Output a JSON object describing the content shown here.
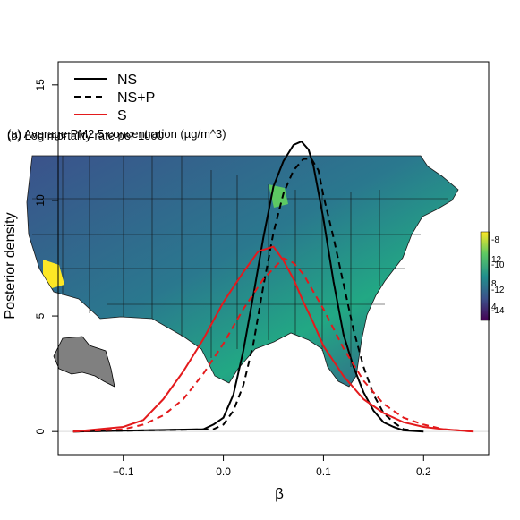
{
  "chart_data": {
    "type": "line",
    "xlabel": "β",
    "ylabel": "Posterior density",
    "xlim": [
      -0.165,
      0.265
    ],
    "ylim": [
      -1.0,
      16.0
    ],
    "x_ticks": [
      -0.1,
      0.0,
      0.1,
      0.2
    ],
    "x_tick_labels": [
      "−0.1",
      "0.0",
      "0.1",
      "0.2"
    ],
    "y_ticks": [
      0,
      5,
      10,
      15
    ],
    "y_tick_labels": [
      "0",
      "5",
      "10",
      "15"
    ],
    "legend_position": "top-left",
    "series": [
      {
        "name": "NS",
        "color": "#000000",
        "dash": "solid",
        "points": [
          [
            -0.15,
            0.0
          ],
          [
            -0.02,
            0.1
          ],
          [
            -0.01,
            0.3
          ],
          [
            0.0,
            0.6
          ],
          [
            0.01,
            1.6
          ],
          [
            0.02,
            3.5
          ],
          [
            0.03,
            5.9
          ],
          [
            0.04,
            8.4
          ],
          [
            0.05,
            10.6
          ],
          [
            0.06,
            11.7
          ],
          [
            0.07,
            12.4
          ],
          [
            0.078,
            12.55
          ],
          [
            0.085,
            12.2
          ],
          [
            0.09,
            11.5
          ],
          [
            0.1,
            9.2
          ],
          [
            0.11,
            6.5
          ],
          [
            0.12,
            4.2
          ],
          [
            0.13,
            2.8
          ],
          [
            0.14,
            1.7
          ],
          [
            0.15,
            0.9
          ],
          [
            0.16,
            0.4
          ],
          [
            0.17,
            0.2
          ],
          [
            0.18,
            0.05
          ],
          [
            0.2,
            0.0
          ]
        ]
      },
      {
        "name": "NS+P",
        "color": "#000000",
        "dash": "dashed",
        "points": [
          [
            -0.15,
            0.0
          ],
          [
            -0.01,
            0.1
          ],
          [
            0.0,
            0.3
          ],
          [
            0.01,
            0.9
          ],
          [
            0.02,
            2.0
          ],
          [
            0.03,
            3.8
          ],
          [
            0.04,
            6.3
          ],
          [
            0.05,
            8.6
          ],
          [
            0.06,
            10.3
          ],
          [
            0.07,
            11.3
          ],
          [
            0.08,
            11.8
          ],
          [
            0.088,
            11.8
          ],
          [
            0.095,
            11.3
          ],
          [
            0.1,
            10.2
          ],
          [
            0.11,
            8.4
          ],
          [
            0.12,
            6.4
          ],
          [
            0.13,
            4.4
          ],
          [
            0.14,
            2.8
          ],
          [
            0.15,
            1.6
          ],
          [
            0.16,
            0.8
          ],
          [
            0.17,
            0.4
          ],
          [
            0.18,
            0.1
          ],
          [
            0.2,
            0.0
          ]
        ]
      },
      {
        "name": "S",
        "color": "#e31a1c",
        "dash": "solid",
        "points": [
          [
            -0.15,
            0.0
          ],
          [
            -0.1,
            0.2
          ],
          [
            -0.08,
            0.5
          ],
          [
            -0.06,
            1.4
          ],
          [
            -0.04,
            2.6
          ],
          [
            -0.02,
            4.0
          ],
          [
            0.0,
            5.6
          ],
          [
            0.02,
            6.9
          ],
          [
            0.035,
            7.8
          ],
          [
            0.05,
            8.0
          ],
          [
            0.06,
            7.4
          ],
          [
            0.07,
            6.6
          ],
          [
            0.08,
            5.6
          ],
          [
            0.09,
            4.7
          ],
          [
            0.1,
            3.7
          ],
          [
            0.12,
            2.4
          ],
          [
            0.14,
            1.4
          ],
          [
            0.16,
            0.8
          ],
          [
            0.18,
            0.4
          ],
          [
            0.2,
            0.2
          ],
          [
            0.22,
            0.1
          ],
          [
            0.25,
            0.0
          ]
        ]
      },
      {
        "name": "",
        "color": "#e31a1c",
        "dash": "dashed",
        "points": [
          [
            -0.15,
            0.0
          ],
          [
            -0.1,
            0.1
          ],
          [
            -0.08,
            0.3
          ],
          [
            -0.06,
            0.7
          ],
          [
            -0.04,
            1.4
          ],
          [
            -0.02,
            2.5
          ],
          [
            0.0,
            3.8
          ],
          [
            0.02,
            5.3
          ],
          [
            0.04,
            6.6
          ],
          [
            0.06,
            7.5
          ],
          [
            0.07,
            7.3
          ],
          [
            0.08,
            6.8
          ],
          [
            0.1,
            5.3
          ],
          [
            0.12,
            3.6
          ],
          [
            0.14,
            2.2
          ],
          [
            0.16,
            1.2
          ],
          [
            0.18,
            0.6
          ],
          [
            0.2,
            0.3
          ],
          [
            0.22,
            0.1
          ],
          [
            0.25,
            0.0
          ]
        ]
      }
    ],
    "inset_map": {
      "title_text_1": "(a) Average PM2.5 concentration (µg/m^3)",
      "title_text_2": "(b) Log mortality rate per 1000",
      "colorbar_colors": [
        "#440154",
        "#3b528b",
        "#21908d",
        "#5dc963",
        "#fde725"
      ],
      "colorbar_labels_left": [
        "4",
        "8",
        "12"
      ],
      "colorbar_labels_right": [
        "-14",
        "-12",
        "-10",
        "-8"
      ]
    }
  }
}
